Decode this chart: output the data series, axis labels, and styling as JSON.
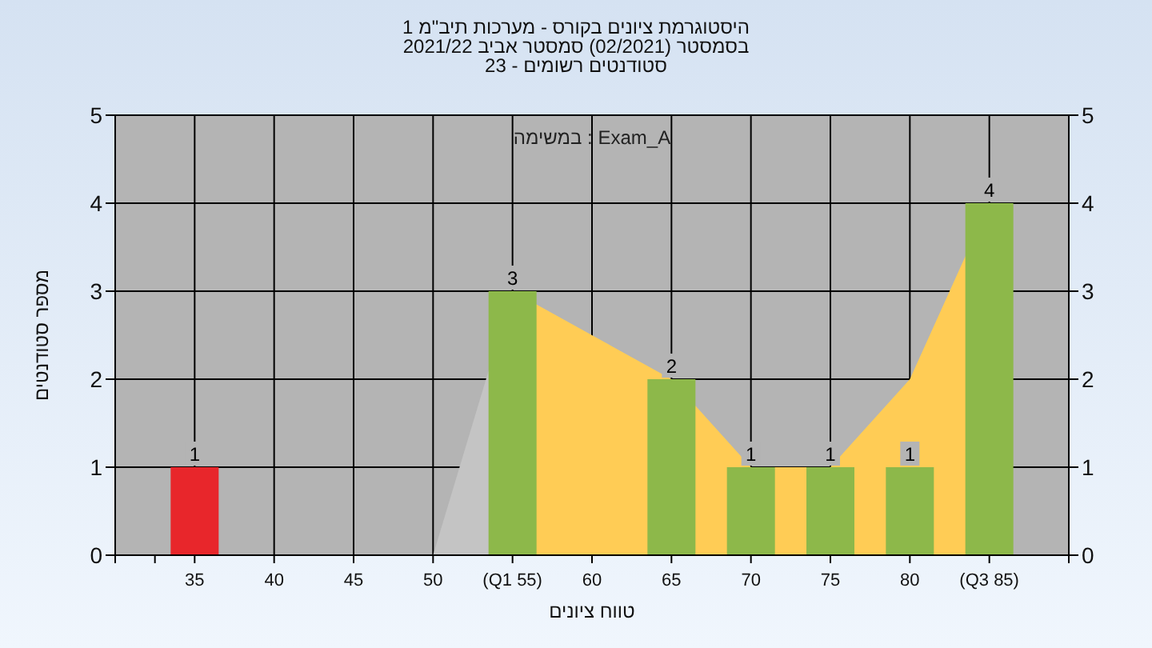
{
  "chart_data": {
    "type": "bar",
    "title": "היסטוגרמת ציונים בקורס - מערכות תיב\"מ 1",
    "subtitle": "בסמסטר  (02/2021)  סמסטר אביב 2021/22\nסטודנטים רשומים - 23",
    "xlabel": "טווח ציונים",
    "ylabel": "מספר סטודנטים",
    "annotations": [
      "במשימה : Exam_A"
    ],
    "categories": [
      "35",
      "40",
      "45",
      "50",
      "(Q1 55)",
      "60",
      "65",
      "70",
      "75",
      "80",
      "(Q3 85)"
    ],
    "series": [
      {
        "type": "area",
        "color": "#c4c4c4",
        "values": [
          null,
          null,
          null,
          0,
          3,
          null,
          null,
          null,
          null,
          null,
          null
        ]
      },
      {
        "type": "area",
        "color": "#ffcc55",
        "values": [
          null,
          null,
          null,
          null,
          3,
          2.5,
          2,
          1,
          1,
          2,
          4
        ]
      },
      {
        "colors": [
          "#e8262b",
          "#8db84a",
          "#8db84a",
          "#8db84a",
          "#8db84a",
          "#8db84a",
          "#8db84a",
          "#8db84a",
          "#8db84a",
          "#8db84a",
          "#8db84a"
        ],
        "values": [
          1,
          0,
          0,
          0,
          3,
          0,
          2,
          1,
          1,
          1,
          4
        ],
        "value_labels": [
          "1",
          null,
          null,
          null,
          "3",
          null,
          "2",
          "1",
          "1",
          "1",
          "4"
        ]
      }
    ],
    "ylim": [
      0,
      5
    ],
    "yticks": [
      0,
      1,
      2,
      3,
      4,
      5
    ],
    "y2lim": [
      0,
      5
    ],
    "y2ticks": [
      0,
      1,
      2,
      3,
      4,
      5
    ],
    "grid": true
  }
}
